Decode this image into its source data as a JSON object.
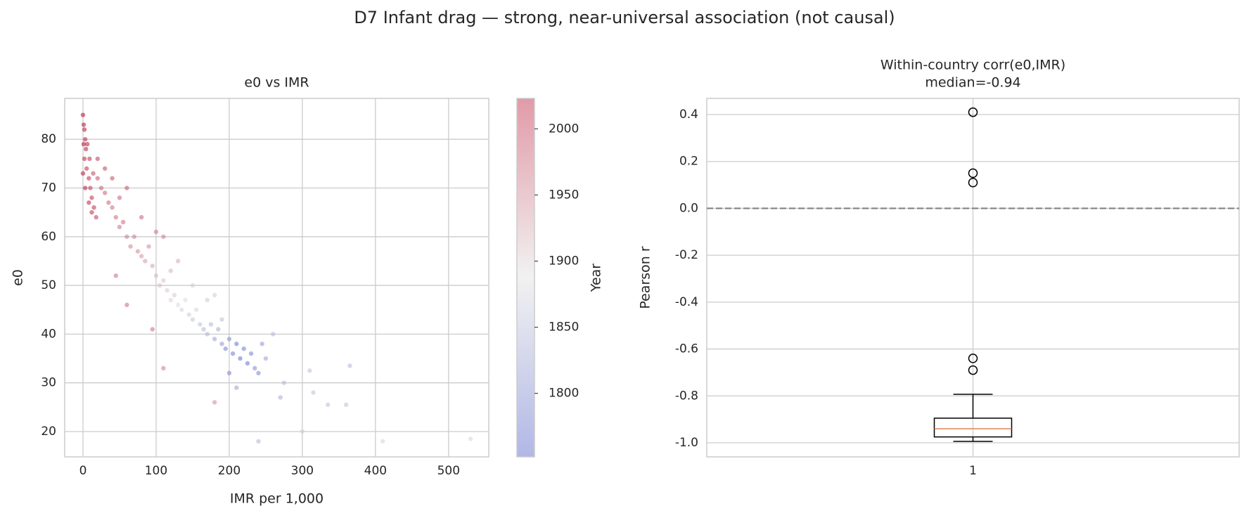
{
  "title": "D7 Infant drag — strong, near-universal association (not causal)",
  "chart_data": [
    {
      "type": "scatter",
      "title": "e0 vs IMR",
      "x_label": "IMR per 1,000",
      "y_label": "e0",
      "x": [
        0,
        1,
        2,
        3,
        4,
        2,
        5,
        8,
        10,
        12,
        15,
        18,
        6,
        9,
        14,
        20,
        25,
        30,
        35,
        40,
        45,
        50,
        55,
        60,
        65,
        70,
        75,
        80,
        85,
        90,
        95,
        100,
        105,
        110,
        115,
        120,
        125,
        130,
        135,
        140,
        145,
        150,
        155,
        160,
        165,
        170,
        175,
        180,
        185,
        190,
        195,
        200,
        205,
        210,
        215,
        220,
        225,
        230,
        235,
        240,
        245,
        250,
        200,
        210,
        190,
        170,
        130,
        110,
        100,
        60,
        40,
        30,
        20,
        150,
        120,
        80,
        50,
        260,
        270,
        275,
        310,
        315,
        300,
        335,
        360,
        365,
        240,
        410,
        530,
        180,
        110,
        95,
        60,
        45,
        12,
        8,
        3,
        0,
        1,
        180
      ],
      "y": [
        85,
        83,
        82,
        80,
        78,
        76,
        74,
        72,
        70,
        68,
        66,
        64,
        79,
        76,
        73,
        72,
        70,
        69,
        67,
        66,
        64,
        62,
        63,
        60,
        58,
        60,
        57,
        56,
        55,
        58,
        54,
        52,
        50,
        51,
        49,
        47,
        48,
        46,
        45,
        47,
        44,
        43,
        45,
        42,
        41,
        40,
        42,
        39,
        41,
        38,
        37,
        39,
        36,
        38,
        35,
        37,
        34,
        36,
        33,
        32,
        38,
        35,
        32,
        29,
        43,
        47,
        55,
        60,
        61,
        70,
        72,
        74,
        76,
        50,
        53,
        64,
        68,
        40,
        27,
        30,
        32.5,
        28,
        20,
        25.5,
        25.5,
        33.5,
        18,
        18,
        18.5,
        26,
        33,
        41,
        46,
        52,
        65,
        67,
        70,
        73,
        79,
        48
      ],
      "year": [
        2020,
        2018,
        2015,
        2012,
        2010,
        2005,
        2000,
        2000,
        1995,
        1998,
        2000,
        1990,
        2008,
        2002,
        1985,
        1975,
        1970,
        1965,
        1965,
        1960,
        1960,
        1955,
        1960,
        1950,
        1945,
        1950,
        1940,
        1935,
        1930,
        1940,
        1925,
        1915,
        1910,
        1905,
        1900,
        1895,
        1900,
        1890,
        1880,
        1885,
        1870,
        1865,
        1880,
        1860,
        1850,
        1845,
        1850,
        1830,
        1840,
        1820,
        1800,
        1810,
        1795,
        1790,
        1785,
        1795,
        1790,
        1800,
        1810,
        1805,
        1820,
        1830,
        1805,
        1830,
        1860,
        1870,
        1920,
        1950,
        1955,
        1975,
        1980,
        1985,
        1990,
        1900,
        1915,
        1965,
        1970,
        1850,
        1840,
        1850,
        1860,
        1860,
        1870,
        1860,
        1860,
        1850,
        1850,
        1880,
        1880,
        1940,
        1950,
        1960,
        1960,
        1960,
        2000,
        2005,
        2010,
        2015,
        2020,
        1900
      ],
      "xlim": [
        -25,
        555
      ],
      "ylim": [
        14.8,
        88.4
      ],
      "xticks": [
        0,
        100,
        200,
        300,
        400,
        500
      ],
      "yticks": [
        20,
        30,
        40,
        50,
        60,
        70,
        80
      ],
      "grid": true,
      "colormap": [
        "#3b4cc0",
        "#dddddd",
        "#b40426"
      ],
      "colorbar": {
        "label": "Year",
        "lim": [
          1752,
          2023
        ],
        "ticks": [
          1800,
          1850,
          1900,
          1950,
          2000
        ]
      }
    },
    {
      "type": "box",
      "title": "Within-country corr(e0,IMR)",
      "subtitle": "median=-0.94",
      "y_label": "Pearson r",
      "whisker_low": -0.994,
      "q1": -0.975,
      "median": -0.94,
      "q3": -0.895,
      "whisker_high": -0.793,
      "outliers": [
        0.41,
        0.15,
        0.11,
        -0.64,
        -0.69
      ],
      "reference_line": 0,
      "reference_color": "#808080",
      "median_color": "#dd8452",
      "xlim": [
        0.5,
        1.5
      ],
      "xticks": [
        1
      ],
      "ylim": [
        -1.06,
        0.469
      ],
      "yticks": [
        {
          "value": -1,
          "label": "-1.0"
        },
        -0.8,
        -0.6,
        -0.4,
        -0.2,
        {
          "value": 0,
          "label": "0.0"
        },
        0.2,
        0.4
      ],
      "grid": true
    }
  ]
}
